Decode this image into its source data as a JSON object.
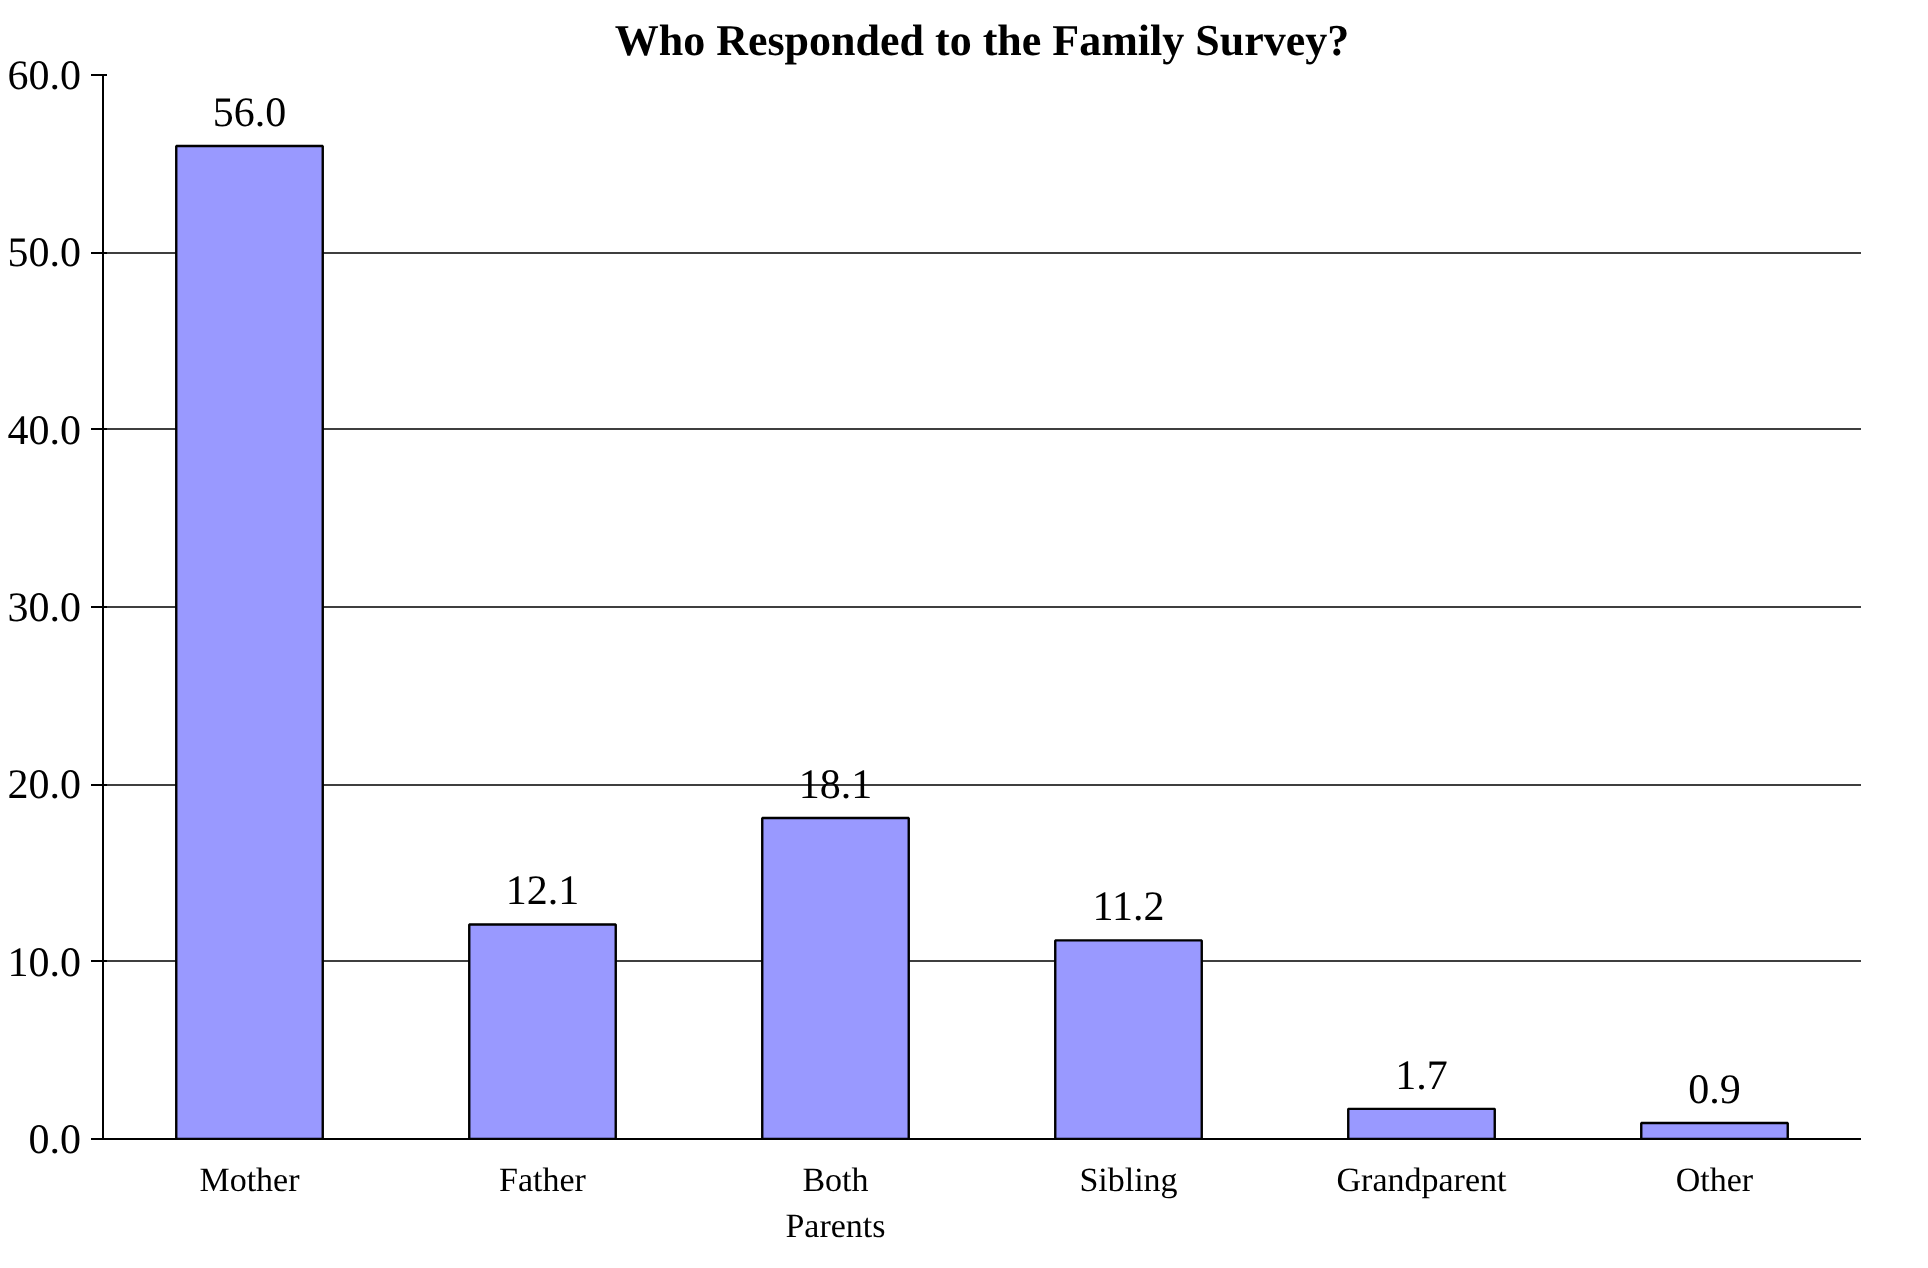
{
  "chart_data": {
    "type": "bar",
    "title": "Who Responded to the Family Survey?",
    "categories": [
      "Mother",
      "Father",
      "Both Parents",
      "Sibling",
      "Grandparent",
      "Other"
    ],
    "values": [
      56.0,
      12.1,
      18.1,
      11.2,
      1.7,
      0.9
    ],
    "color": "#9999ff",
    "ylim": [
      0,
      60
    ],
    "yticks": [
      {
        "value": 0,
        "label": "0.0"
      },
      {
        "value": 10,
        "label": "10.0"
      },
      {
        "value": 20,
        "label": "20.0"
      },
      {
        "value": 30,
        "label": "30.0"
      },
      {
        "value": 40,
        "label": "40.0"
      },
      {
        "value": 50,
        "label": "50.0"
      },
      {
        "value": 60,
        "label": "60.0"
      }
    ],
    "value_labels": [
      "56.0",
      "12.1",
      "18.1",
      "11.2",
      "1.7",
      "0.9"
    ],
    "grid": "y"
  }
}
